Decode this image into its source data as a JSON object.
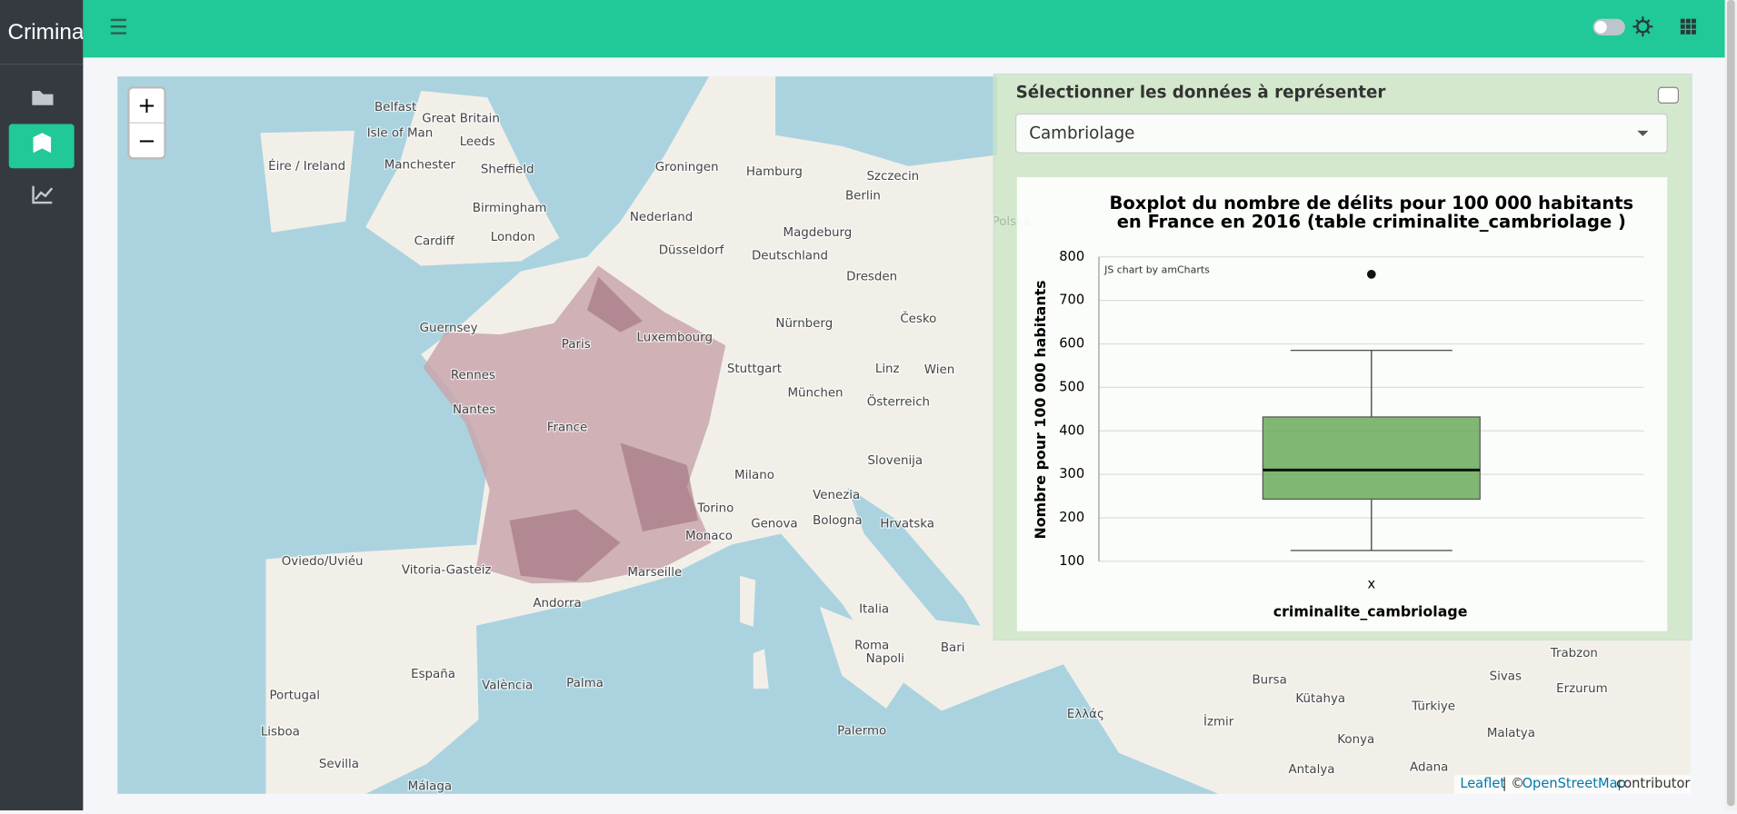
{
  "app": {
    "brand": "Crimina"
  },
  "map": {
    "zoom_in": "+",
    "zoom_out": "−",
    "labels": [
      "Belfast",
      "Great Britain",
      "Isle of Man",
      "Leeds",
      "Éire / Ireland",
      "Manchester",
      "Sheffield",
      "Birmingham",
      "Cardiff",
      "London",
      "Guernsey",
      "Nederland",
      "Groningen",
      "Hamburg",
      "Berlin",
      "Szczecin",
      "Düsseldorf",
      "Deutschland",
      "Magdeburg",
      "Dresden",
      "Nürnberg",
      "Luxembourg",
      "Stuttgart",
      "Paris",
      "Rennes",
      "Nantes",
      "France",
      "München",
      "Wien",
      "Linz",
      "Česko",
      "Polska",
      "Österreich",
      "Slovenija",
      "Hrvatska",
      "Milano",
      "Venezia",
      "Torino",
      "Genova",
      "Bologna",
      "Monaco",
      "Marseille",
      "Vitoria-Gasteiz",
      "Oviedo/Uviéu",
      "Andorra",
      "España",
      "Portugal",
      "Lisboa",
      "Sevilla",
      "Málaga",
      "València",
      "Palma",
      "Italia",
      "Roma",
      "Napoli",
      "Bari",
      "Palermo",
      "Ελλάς",
      "İzmir",
      "Bursa",
      "Kütahya",
      "Konya",
      "Antalya",
      "Adana",
      "Türkiye",
      "Sivas",
      "Malatya",
      "Erzurum",
      "Trabzon"
    ],
    "attribution": {
      "leaflet": "Leaflet",
      "separator": "| ©",
      "osm": "OpenStreetMap",
      "contributors": "contributors"
    }
  },
  "panel": {
    "title": "Sélectionner les données à représenter",
    "select": "Cambriolage"
  },
  "chart_data": {
    "type": "boxplot",
    "title": [
      "Boxplot du nombre de délits pour 100 000 habitants",
      "en France en 2016 (table criminalite_cambriolage )"
    ],
    "credit": "JS chart by amCharts",
    "y_label": "Nombre pour 100 000 habitants",
    "x_label": "criminalite_cambriolage",
    "categories": [
      "x"
    ],
    "boxes": [
      {
        "min": 125,
        "q1": 243,
        "median": 310,
        "q3": 432,
        "max": 585,
        "outliers": [
          760
        ]
      }
    ],
    "color": "#6aaa5a",
    "ylim": [
      100,
      800
    ],
    "yticks": [
      100,
      200,
      300,
      400,
      500,
      600,
      700,
      800
    ],
    "grid": true
  }
}
